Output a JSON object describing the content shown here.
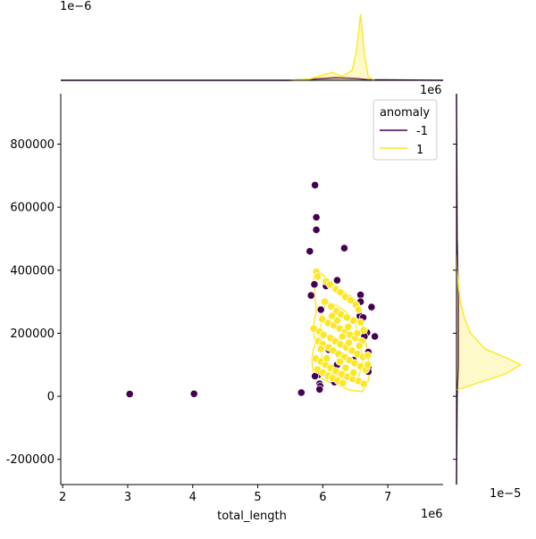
{
  "chart_data": {
    "type": "scatter",
    "xlabel": "total_length",
    "ylabel": "",
    "x_offset_label": "1e6",
    "y_offset_label": "1e6",
    "top_marginal_offset_label": "1e−6",
    "right_marginal_offset_label": "1e−5",
    "xlim": [
      1.97,
      7.85
    ],
    "ylim": [
      -280000,
      960000
    ],
    "x_ticks": [
      2,
      3,
      4,
      5,
      6,
      7
    ],
    "x_tick_labels": [
      "2",
      "3",
      "4",
      "5",
      "6",
      "7"
    ],
    "y_ticks": [
      -200000,
      0,
      200000,
      400000,
      600000,
      800000
    ],
    "y_tick_labels": [
      "-200000",
      "0",
      "200000",
      "400000",
      "600000",
      "800000"
    ],
    "grid": false,
    "legend": {
      "title": "anomaly",
      "placement": "top-right",
      "entries": [
        "-1",
        "1"
      ]
    },
    "series": [
      {
        "name": "-1",
        "color": "#440154",
        "points": [
          [
            3.03,
            7000
          ],
          [
            4.02,
            8000
          ],
          [
            5.67,
            12000
          ],
          [
            5.8,
            460000
          ],
          [
            5.88,
            670000
          ],
          [
            5.9,
            568000
          ],
          [
            5.9,
            528000
          ],
          [
            5.82,
            320000
          ],
          [
            5.87,
            355000
          ],
          [
            5.97,
            275000
          ],
          [
            6.05,
            350000
          ],
          [
            6.22,
            368000
          ],
          [
            6.33,
            470000
          ],
          [
            6.58,
            322000
          ],
          [
            6.58,
            300000
          ],
          [
            6.57,
            255000
          ],
          [
            6.75,
            283000
          ],
          [
            6.8,
            190000
          ],
          [
            6.68,
            202000
          ],
          [
            6.7,
            140000
          ],
          [
            6.7,
            92000
          ],
          [
            6.7,
            78000
          ],
          [
            5.93,
            68000
          ],
          [
            5.95,
            40000
          ],
          [
            5.96,
            32000
          ],
          [
            5.95,
            22000
          ],
          [
            6.18,
            45000
          ],
          [
            6.09,
            148000
          ],
          [
            6.64,
            190000
          ],
          [
            6.62,
            250000
          ],
          [
            6.22,
            100000
          ],
          [
            6.47,
            115000
          ],
          [
            5.88,
            64000
          ]
        ]
      },
      {
        "name": "1",
        "color": "#fde725",
        "points": [
          [
            5.9,
            395000
          ],
          [
            5.92,
            380000
          ],
          [
            6.05,
            365000
          ],
          [
            6.11,
            355000
          ],
          [
            6.2,
            340000
          ],
          [
            6.27,
            330000
          ],
          [
            6.35,
            315000
          ],
          [
            6.43,
            305000
          ],
          [
            6.51,
            290000
          ],
          [
            6.55,
            275000
          ],
          [
            6.03,
            300000
          ],
          [
            6.13,
            285000
          ],
          [
            6.21,
            270000
          ],
          [
            6.28,
            260000
          ],
          [
            6.37,
            250000
          ],
          [
            6.47,
            240000
          ],
          [
            6.08,
            232000
          ],
          [
            6.17,
            225000
          ],
          [
            6.26,
            215000
          ],
          [
            6.34,
            205000
          ],
          [
            6.42,
            195000
          ],
          [
            6.5,
            185000
          ],
          [
            6.6,
            175000
          ],
          [
            5.86,
            215000
          ],
          [
            5.95,
            205000
          ],
          [
            6.01,
            195000
          ],
          [
            6.12,
            185000
          ],
          [
            6.19,
            175000
          ],
          [
            6.27,
            165000
          ],
          [
            6.36,
            155000
          ],
          [
            6.45,
            145000
          ],
          [
            6.53,
            135000
          ],
          [
            6.62,
            125000
          ],
          [
            5.93,
            175000
          ],
          [
            6.0,
            165000
          ],
          [
            6.09,
            155000
          ],
          [
            6.16,
            145000
          ],
          [
            6.24,
            135000
          ],
          [
            6.33,
            125000
          ],
          [
            6.41,
            115000
          ],
          [
            6.49,
            105000
          ],
          [
            6.58,
            95000
          ],
          [
            6.66,
            85000
          ],
          [
            5.89,
            120000
          ],
          [
            5.97,
            110000
          ],
          [
            6.04,
            100000
          ],
          [
            6.12,
            90000
          ],
          [
            6.2,
            80000
          ],
          [
            6.29,
            70000
          ],
          [
            6.38,
            62000
          ],
          [
            6.46,
            55000
          ],
          [
            6.55,
            48000
          ],
          [
            6.63,
            40000
          ],
          [
            5.92,
            85000
          ],
          [
            6.0,
            75000
          ],
          [
            6.08,
            65000
          ],
          [
            6.15,
            58000
          ],
          [
            6.23,
            50000
          ],
          [
            6.31,
            42000
          ],
          [
            5.97,
            150000
          ],
          [
            6.4,
            170000
          ],
          [
            6.56,
            160000
          ],
          [
            6.69,
            100000
          ],
          [
            6.69,
            130000
          ],
          [
            6.63,
            210000
          ],
          [
            6.58,
            235000
          ],
          [
            6.22,
            240000
          ],
          [
            6.14,
            255000
          ],
          [
            6.3,
            190000
          ],
          [
            6.39,
            220000
          ],
          [
            6.06,
            120000
          ],
          [
            6.35,
            90000
          ],
          [
            6.47,
            75000
          ],
          [
            6.53,
            200000
          ],
          [
            5.99,
            245000
          ],
          [
            6.26,
            110000
          ]
        ]
      }
    ],
    "top_marginal": {
      "type": "kde",
      "series": [
        {
          "name": "-1",
          "color": "#440154",
          "x": [
            1.97,
            5.5,
            5.9,
            6.2,
            6.5,
            6.7,
            7.85
          ],
          "density": [
            0,
            0.0,
            0.02,
            0.04,
            0.03,
            0.01,
            0
          ]
        },
        {
          "name": "1",
          "color": "#fde725",
          "x": [
            5.5,
            5.8,
            6.0,
            6.15,
            6.3,
            6.45,
            6.52,
            6.58,
            6.64,
            6.7,
            6.8
          ],
          "density": [
            0,
            0.02,
            0.08,
            0.12,
            0.06,
            0.15,
            0.45,
            1.0,
            0.4,
            0.05,
            0
          ]
        }
      ]
    },
    "right_marginal": {
      "type": "kde",
      "series": [
        {
          "name": "-1",
          "color": "#440154",
          "y": [
            -280000,
            0,
            100000,
            300000,
            500000,
            700000,
            960000
          ],
          "density": [
            0,
            0.01,
            0.03,
            0.03,
            0.01,
            0.005,
            0
          ]
        },
        {
          "name": "1",
          "color": "#fde725",
          "y": [
            20000,
            40000,
            70000,
            100000,
            120000,
            150000,
            200000,
            250000,
            300000,
            350000,
            400000,
            450000
          ],
          "density": [
            0,
            0.3,
            0.75,
            1.0,
            0.8,
            0.45,
            0.22,
            0.12,
            0.06,
            0.03,
            0.01,
            0
          ]
        }
      ]
    }
  }
}
